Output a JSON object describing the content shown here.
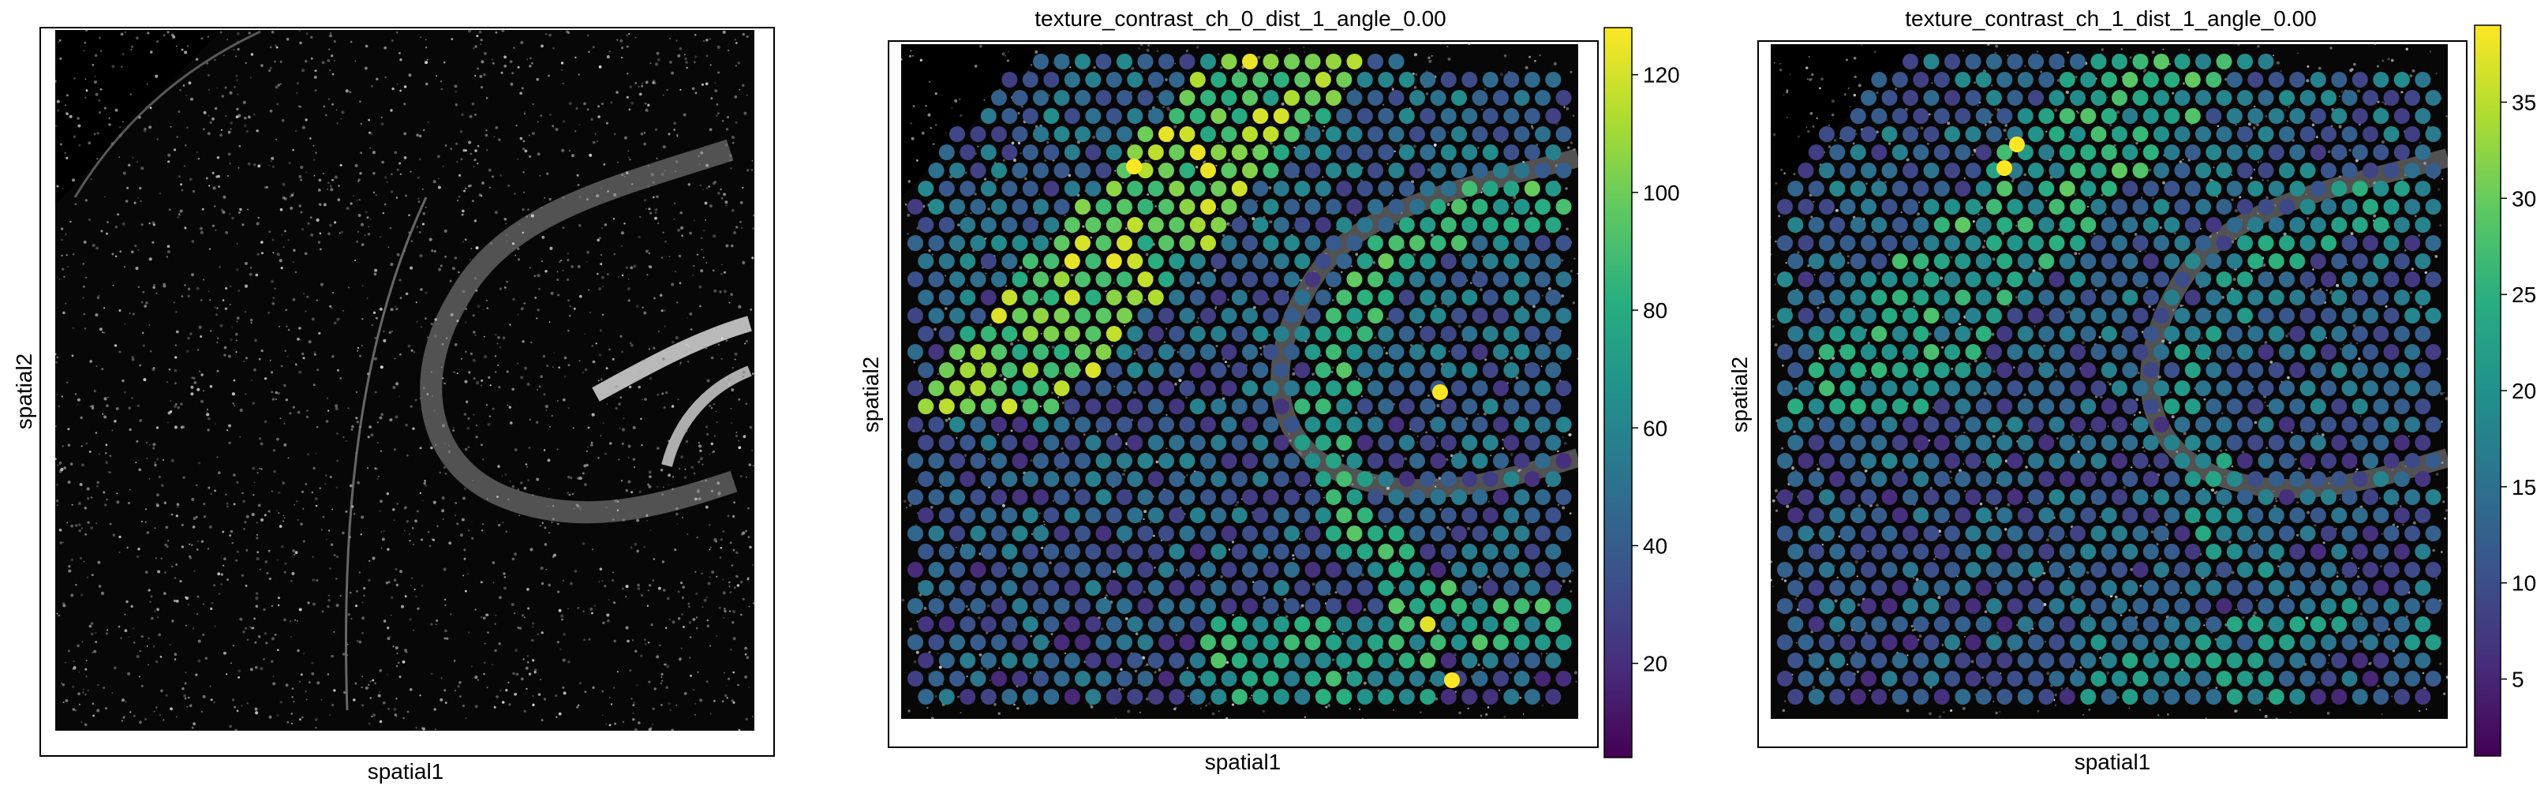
{
  "panels": [
    {
      "title": "",
      "xlabel": "spatial1",
      "ylabel": "spatial2",
      "has_colorbar": false
    },
    {
      "title": "texture_contrast_ch_0_dist_1_angle_0.00",
      "xlabel": "spatial1",
      "ylabel": "spatial2",
      "has_colorbar": true,
      "colorbar": {
        "min": 4,
        "max": 128,
        "ticks": [
          20,
          40,
          60,
          80,
          100,
          120
        ],
        "colormap": "viridis"
      }
    },
    {
      "title": "texture_contrast_ch_1_dist_1_angle_0.00",
      "xlabel": "spatial1",
      "ylabel": "spatial2",
      "has_colorbar": true,
      "colorbar": {
        "min": 1,
        "max": 39,
        "ticks": [
          5,
          10,
          15,
          20,
          25,
          30,
          35
        ],
        "colormap": "viridis"
      }
    }
  ],
  "chart_data": [
    {
      "type": "image",
      "title": "",
      "xlabel": "spatial1",
      "ylabel": "spatial2",
      "description_values": {
        "colormap": "grayscale",
        "background": "#000000"
      }
    },
    {
      "type": "scatter",
      "title": "texture_contrast_ch_0_dist_1_angle_0.00",
      "xlabel": "spatial1",
      "ylabel": "spatial2",
      "color_range": [
        4,
        128
      ],
      "colorbar_ticks": [
        20,
        40,
        60,
        80,
        100,
        120
      ],
      "colormap": "viridis",
      "grid": false,
      "legend": "colorbar right"
    },
    {
      "type": "scatter",
      "title": "texture_contrast_ch_1_dist_1_angle_0.00",
      "xlabel": "spatial1",
      "ylabel": "spatial2",
      "color_range": [
        1,
        39
      ],
      "colorbar_ticks": [
        5,
        10,
        15,
        20,
        25,
        30,
        35
      ],
      "colormap": "viridis",
      "grid": false,
      "legend": "colorbar right"
    }
  ],
  "colors": {
    "frame": "#000000",
    "tissue_bg": "#000000",
    "viridis_low": "#440154",
    "viridis_mid": "#21918c",
    "viridis_high": "#fde725"
  }
}
